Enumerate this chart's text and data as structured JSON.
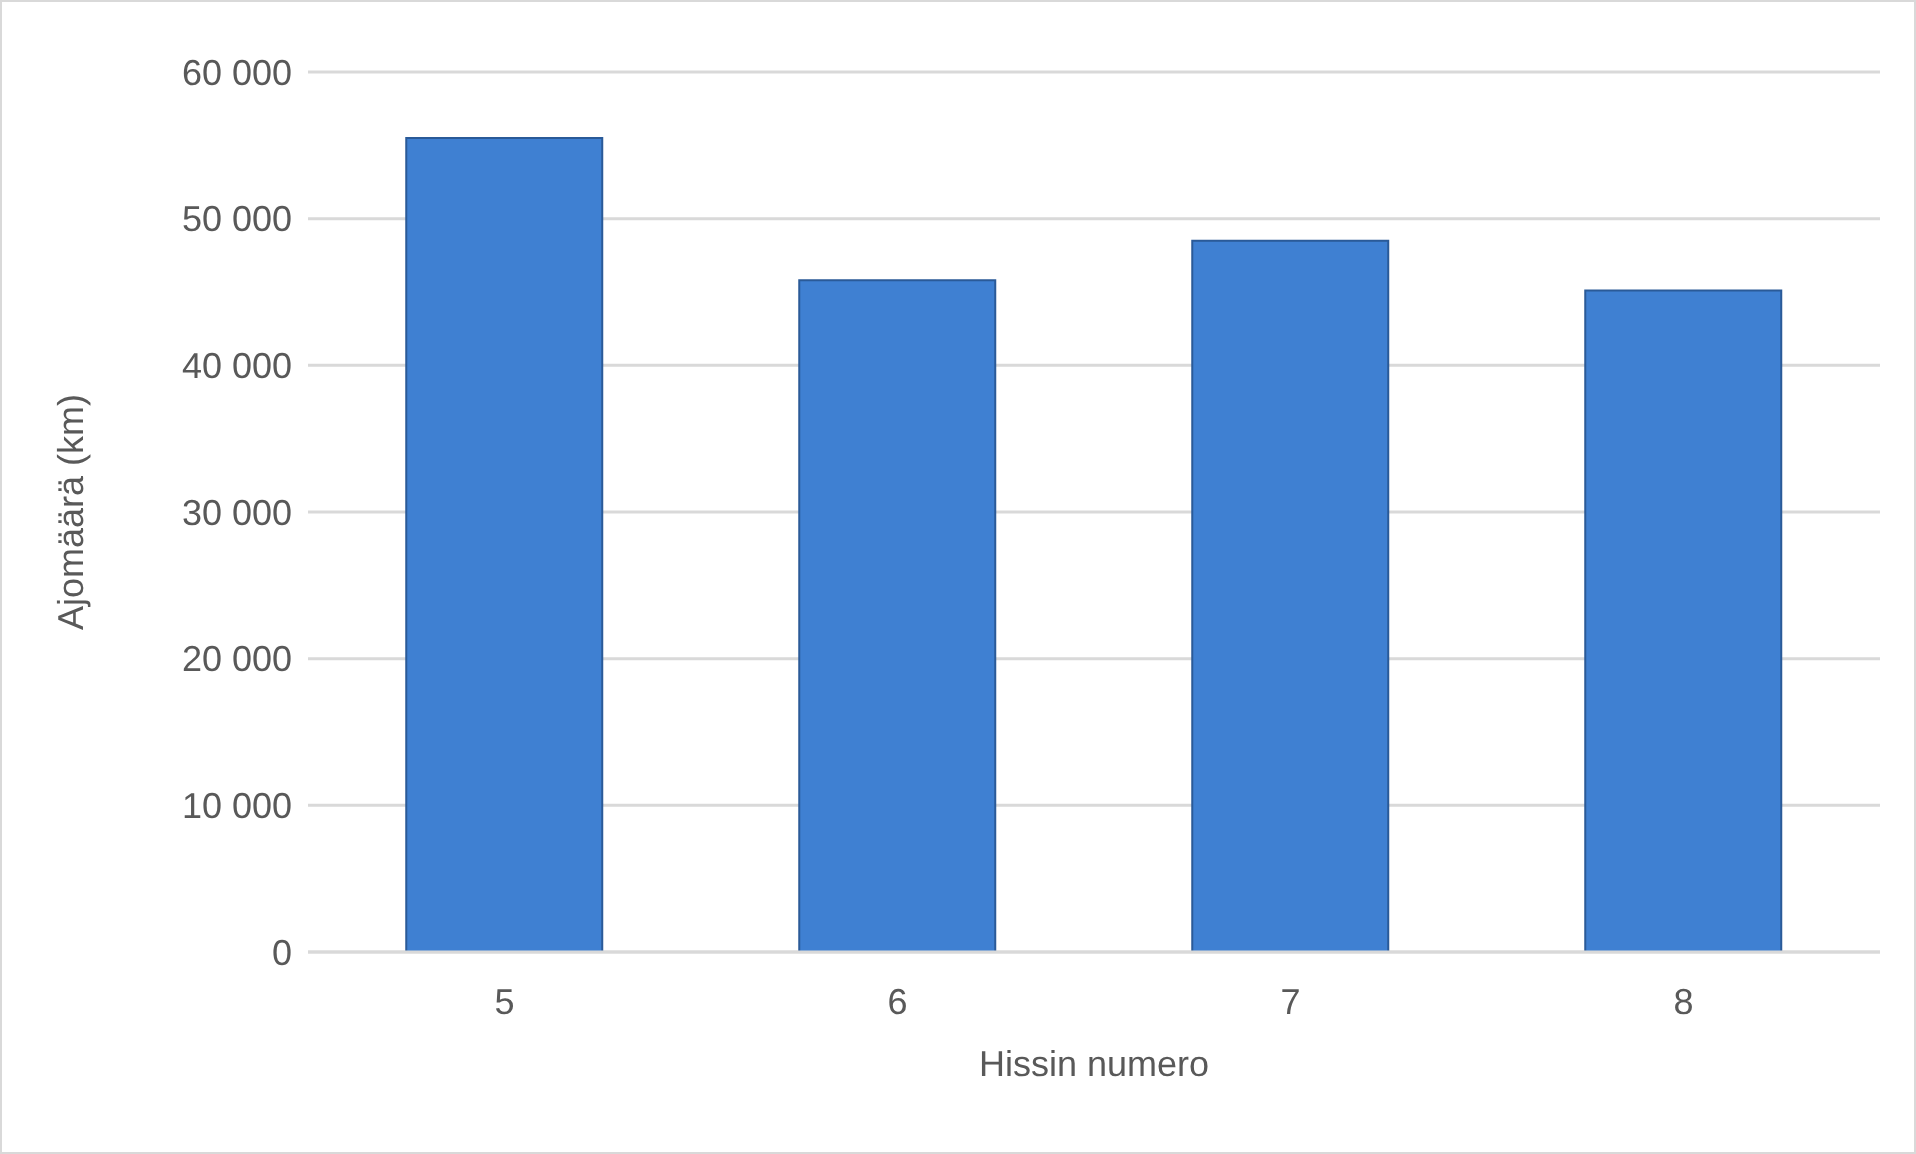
{
  "chart_data": {
    "type": "bar",
    "xlabel": "Hissin numero",
    "ylabel": "Ajomäärä (km)",
    "categories": [
      "5",
      "6",
      "7",
      "8"
    ],
    "values": [
      55500,
      45800,
      48500,
      45100
    ],
    "color": "#3f80d2",
    "ylim": [
      0,
      60000
    ],
    "yticks": [
      {
        "value": 0,
        "label": "0"
      },
      {
        "value": 10000,
        "label": "10 000"
      },
      {
        "value": 20000,
        "label": "20 000"
      },
      {
        "value": 30000,
        "label": "30 000"
      },
      {
        "value": 40000,
        "label": "40 000"
      },
      {
        "value": 50000,
        "label": "50 000"
      },
      {
        "value": 60000,
        "label": "60 000"
      }
    ],
    "grid": "y"
  }
}
